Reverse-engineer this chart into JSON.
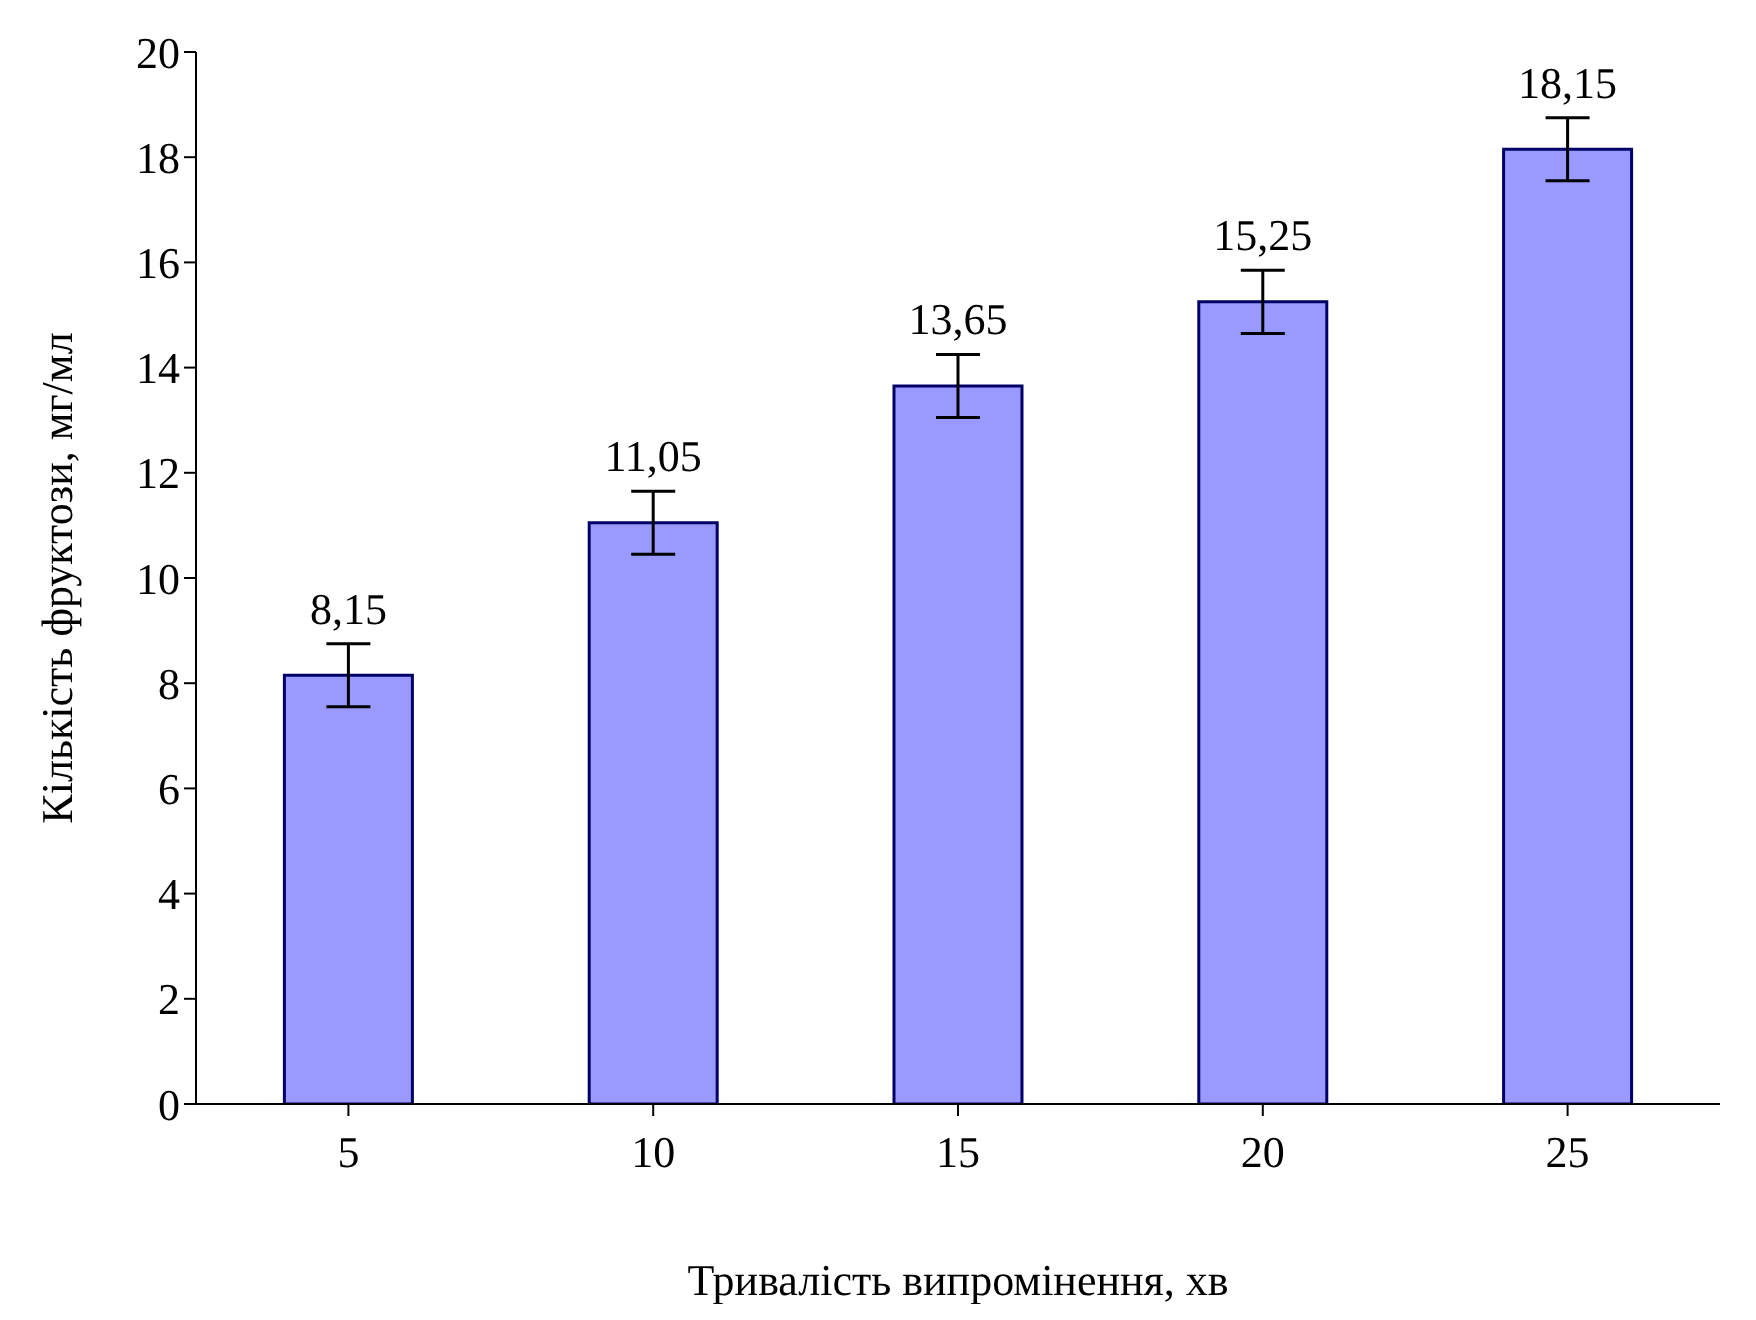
{
  "chart_data": {
    "type": "bar",
    "xlabel": "Тривалість випромінення, хв",
    "ylabel": "Кількість фруктози, мг/мл",
    "categories": [
      "5",
      "10",
      "15",
      "20",
      "25"
    ],
    "values": [
      8.15,
      11.05,
      13.65,
      15.25,
      18.15
    ],
    "value_labels": [
      "8,15",
      "11,05",
      "13,65",
      "15,25",
      "18,15"
    ],
    "errors": [
      0.6,
      0.6,
      0.6,
      0.6,
      0.6
    ],
    "color": "#9999ff",
    "ylim": [
      0,
      20
    ],
    "yticks": [
      0,
      2,
      4,
      6,
      8,
      10,
      12,
      14,
      16,
      18,
      20
    ],
    "grid": false,
    "legend": false
  }
}
